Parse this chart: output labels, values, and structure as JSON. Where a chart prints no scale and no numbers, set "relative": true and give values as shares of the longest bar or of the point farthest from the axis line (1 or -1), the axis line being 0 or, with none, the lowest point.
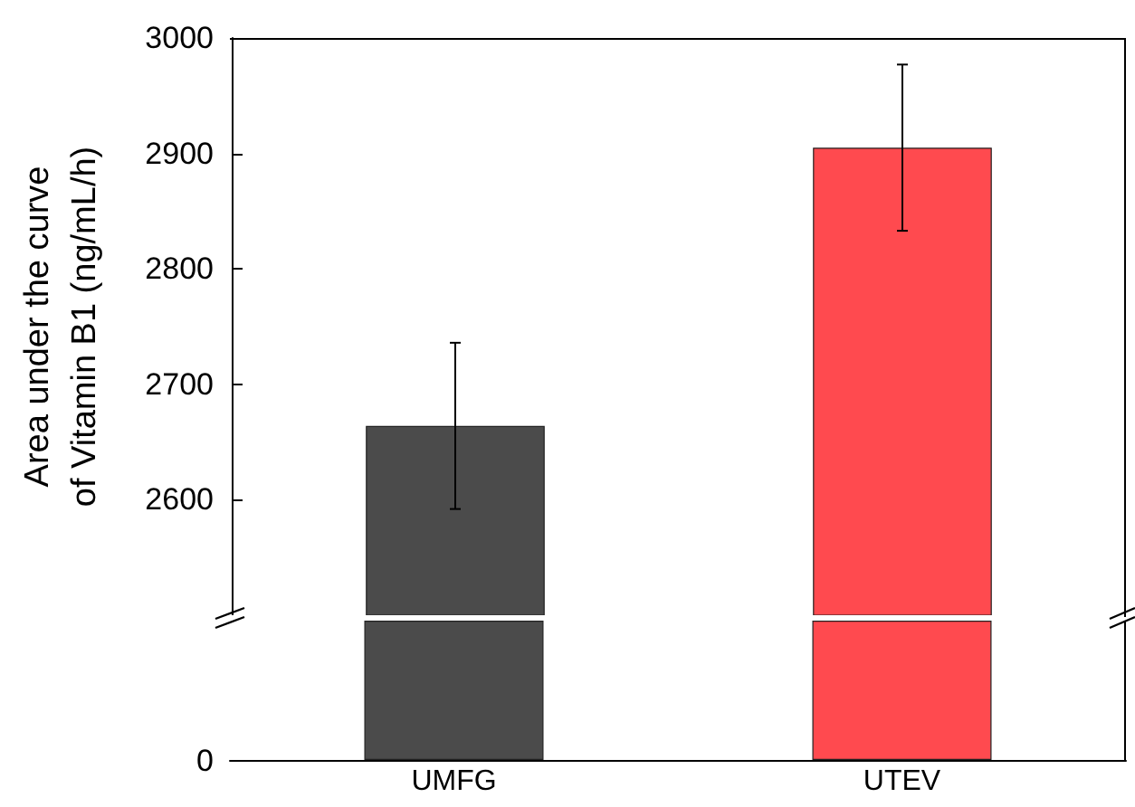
{
  "chart_data": [
    {
      "type": "bar",
      "ylabel": "Area under the curve\nof Vitamin B1 (ng/mL/h)",
      "categories": [
        null,
        null
      ],
      "colors": [
        "#4b4b4b",
        "#ff4a4f"
      ],
      "values": [
        2664,
        2905
      ],
      "errors": [
        72,
        72
      ],
      "ylim": [
        2500,
        3000
      ],
      "yticks": [
        2600,
        2700,
        2800,
        2900,
        3000
      ],
      "grid": false,
      "tick_labels": "y"
    },
    {
      "type": "bar",
      "relative": true,
      "categories": [
        "UMFG",
        "UTEV"
      ],
      "colors": [
        "#4b4b4b",
        "#ff4a4f"
      ],
      "values": [
        1,
        1
      ],
      "annotations": [
        "0"
      ],
      "tick_labels": "x"
    }
  ]
}
